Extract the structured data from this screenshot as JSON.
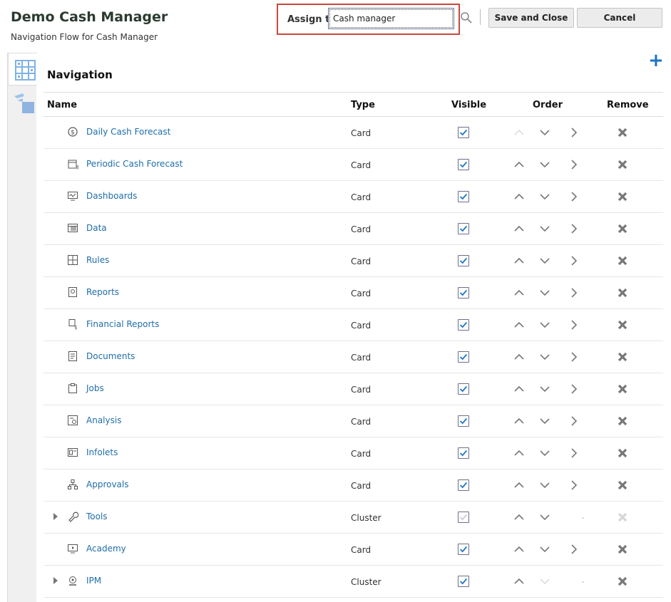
{
  "header": {
    "title": "Demo Cash Manager",
    "subtitle": "Navigation Flow for Cash Manager"
  },
  "assign": {
    "label": "Assign to",
    "value": "Cash manager"
  },
  "toolbar": {
    "save_label": "Save and Close",
    "cancel_label": "Cancel"
  },
  "section_title": "Navigation",
  "columns": {
    "name": "Name",
    "type": "Type",
    "visible": "Visible",
    "order": "Order",
    "remove": "Remove"
  },
  "colors": {
    "accent": "#1a73c9",
    "link": "#1f6ea8",
    "highlight": "#c9483a"
  },
  "rows": [
    {
      "name": "Daily Cash Forecast",
      "type": "Card",
      "icon": "dollar-refresh-icon",
      "visible": true,
      "up": false,
      "down": true,
      "drill": true,
      "removable": true,
      "expandable": false
    },
    {
      "name": "Periodic Cash Forecast",
      "type": "Card",
      "icon": "calendar-dollar-icon",
      "visible": true,
      "up": true,
      "down": true,
      "drill": true,
      "removable": true,
      "expandable": false
    },
    {
      "name": "Dashboards",
      "type": "Card",
      "icon": "monitor-chart-icon",
      "visible": true,
      "up": true,
      "down": true,
      "drill": true,
      "removable": true,
      "expandable": false
    },
    {
      "name": "Data",
      "type": "Card",
      "icon": "table-icon",
      "visible": true,
      "up": true,
      "down": true,
      "drill": true,
      "removable": true,
      "expandable": false
    },
    {
      "name": "Rules",
      "type": "Card",
      "icon": "calculator-icon",
      "visible": true,
      "up": true,
      "down": true,
      "drill": true,
      "removable": true,
      "expandable": false
    },
    {
      "name": "Reports",
      "type": "Card",
      "icon": "report-icon",
      "visible": true,
      "up": true,
      "down": true,
      "drill": true,
      "removable": true,
      "expandable": false
    },
    {
      "name": "Financial Reports",
      "type": "Card",
      "icon": "financial-report-icon",
      "visible": true,
      "up": true,
      "down": true,
      "drill": true,
      "removable": true,
      "expandable": false
    },
    {
      "name": "Documents",
      "type": "Card",
      "icon": "document-icon",
      "visible": true,
      "up": true,
      "down": true,
      "drill": true,
      "removable": true,
      "expandable": false
    },
    {
      "name": "Jobs",
      "type": "Card",
      "icon": "clipboard-icon",
      "visible": true,
      "up": true,
      "down": true,
      "drill": true,
      "removable": true,
      "expandable": false
    },
    {
      "name": "Analysis",
      "type": "Card",
      "icon": "analysis-icon",
      "visible": true,
      "up": true,
      "down": true,
      "drill": true,
      "removable": true,
      "expandable": false
    },
    {
      "name": "Infolets",
      "type": "Card",
      "icon": "infolet-icon",
      "visible": true,
      "up": true,
      "down": true,
      "drill": true,
      "removable": true,
      "expandable": false
    },
    {
      "name": "Approvals",
      "type": "Card",
      "icon": "hierarchy-icon",
      "visible": true,
      "up": true,
      "down": true,
      "drill": true,
      "removable": true,
      "expandable": false
    },
    {
      "name": "Tools",
      "type": "Cluster",
      "icon": "wrench-icon",
      "visible": true,
      "visible_disabled": true,
      "up": true,
      "down": true,
      "drill": false,
      "removable": false,
      "expandable": true
    },
    {
      "name": "Academy",
      "type": "Card",
      "icon": "video-monitor-icon",
      "visible": true,
      "up": true,
      "down": true,
      "drill": true,
      "removable": true,
      "expandable": false
    },
    {
      "name": "IPM",
      "type": "Cluster",
      "icon": "ipm-icon",
      "visible": true,
      "up": true,
      "down": false,
      "drill": false,
      "removable": true,
      "expandable": true
    }
  ]
}
